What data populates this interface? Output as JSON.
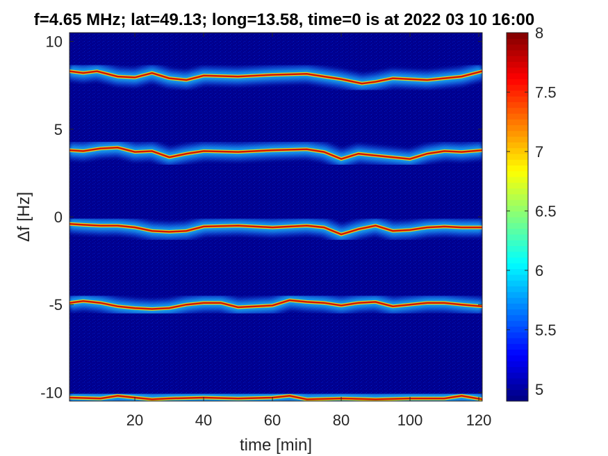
{
  "chart_data": {
    "type": "heatmap",
    "title": "f=4.65 MHz;  lat=49.13; long=13.58, time=0 is at 2022 03 10 16:00",
    "xlabel": "time [min]",
    "ylabel": "Δf [Hz]",
    "xlim": [
      1,
      121
    ],
    "ylim": [
      -10.5,
      10.5
    ],
    "x_ticks": [
      20,
      40,
      60,
      80,
      100,
      120
    ],
    "x_tick_labels": [
      "20",
      "40",
      "60",
      "80",
      "100",
      "120"
    ],
    "y_ticks": [
      -10,
      -5,
      0,
      5,
      10
    ],
    "y_tick_labels": [
      "-10",
      "-5",
      "0",
      "5",
      "10"
    ],
    "colorbar": {
      "colormap": "jet",
      "range": [
        4.9,
        8
      ],
      "ticks": [
        5,
        5.5,
        6,
        6.5,
        7,
        7.5,
        8
      ],
      "tick_labels": [
        "5",
        "5.5",
        "6",
        "6.5",
        "7",
        "7.5",
        "8"
      ]
    },
    "background_color": "#00008f",
    "ridges": [
      {
        "x": [
          1,
          5,
          9,
          15,
          20,
          25,
          30,
          35,
          40,
          50,
          60,
          70,
          75,
          80,
          86,
          90,
          95,
          100,
          105,
          110,
          115,
          121
        ],
        "y": [
          8.3,
          8.2,
          8.3,
          8.0,
          7.95,
          8.2,
          7.9,
          7.8,
          8.05,
          8.0,
          8.1,
          8.15,
          8.0,
          7.85,
          7.6,
          7.7,
          7.9,
          7.85,
          7.8,
          7.9,
          8.0,
          8.3
        ]
      },
      {
        "x": [
          1,
          5,
          10,
          15,
          20,
          25,
          30,
          35,
          40,
          50,
          60,
          70,
          75,
          80,
          85,
          90,
          95,
          100,
          105,
          110,
          115,
          121
        ],
        "y": [
          3.8,
          3.75,
          3.9,
          3.95,
          3.7,
          3.75,
          3.4,
          3.6,
          3.75,
          3.7,
          3.8,
          3.85,
          3.7,
          3.3,
          3.6,
          3.5,
          3.4,
          3.3,
          3.6,
          3.75,
          3.7,
          3.8
        ]
      },
      {
        "x": [
          1,
          5,
          10,
          15,
          20,
          25,
          30,
          35,
          40,
          50,
          60,
          70,
          75,
          80,
          85,
          90,
          95,
          100,
          105,
          110,
          115,
          121
        ],
        "y": [
          -0.4,
          -0.45,
          -0.5,
          -0.5,
          -0.6,
          -0.8,
          -0.85,
          -0.8,
          -0.55,
          -0.5,
          -0.6,
          -0.5,
          -0.6,
          -1.0,
          -0.7,
          -0.5,
          -0.8,
          -0.75,
          -0.6,
          -0.55,
          -0.6,
          -0.6
        ]
      },
      {
        "x": [
          1,
          5,
          10,
          15,
          20,
          25,
          30,
          35,
          40,
          45,
          50,
          60,
          65,
          70,
          75,
          80,
          85,
          90,
          95,
          100,
          105,
          110,
          115,
          121
        ],
        "y": [
          -4.9,
          -4.8,
          -4.9,
          -5.1,
          -5.2,
          -5.25,
          -5.2,
          -5.0,
          -4.9,
          -4.9,
          -5.15,
          -5.05,
          -4.75,
          -4.85,
          -4.9,
          -5.05,
          -4.9,
          -4.85,
          -5.1,
          -5.0,
          -4.9,
          -4.9,
          -5.0,
          -5.1
        ]
      },
      {
        "x": [
          1,
          10,
          15,
          20,
          25,
          30,
          40,
          50,
          60,
          65,
          70,
          80,
          90,
          100,
          110,
          115,
          121
        ],
        "y": [
          -10.3,
          -10.35,
          -10.2,
          -10.3,
          -10.4,
          -10.35,
          -10.3,
          -10.35,
          -10.3,
          -10.2,
          -10.4,
          -10.35,
          -10.4,
          -10.35,
          -10.35,
          -10.2,
          -10.4
        ]
      }
    ]
  }
}
